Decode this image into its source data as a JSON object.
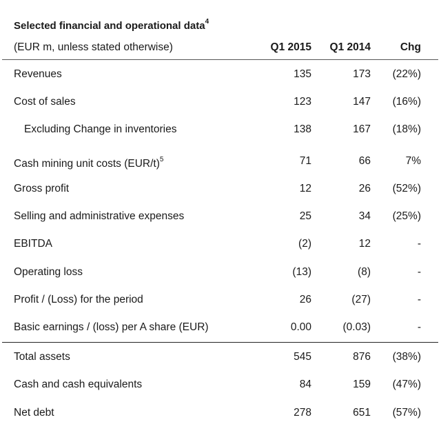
{
  "title": {
    "text": "Selected financial and operational data",
    "footnote": "4"
  },
  "header": {
    "unit_note": "(EUR m, unless stated otherwise)",
    "col_q1_2015": "Q1 2015",
    "col_q1_2014": "Q1 2014",
    "col_chg": "Chg"
  },
  "rows": [
    {
      "label": "Revenues",
      "q1_2015": "135",
      "q1_2014": "173",
      "chg": "(22%)"
    },
    {
      "label": "Cost of sales",
      "q1_2015": "123",
      "q1_2014": "147",
      "chg": "(16%)"
    },
    {
      "label": "Excluding Change in inventories",
      "q1_2015": "138",
      "q1_2014": "167",
      "chg": "(18%)"
    },
    {
      "label": "Cash mining unit costs (EUR/t)",
      "footnote": "5",
      "q1_2015": "71",
      "q1_2014": "66",
      "chg": "7%"
    },
    {
      "label": "Gross profit",
      "q1_2015": "12",
      "q1_2014": "26",
      "chg": "(52%)"
    },
    {
      "label": "Selling and administrative expenses",
      "q1_2015": "25",
      "q1_2014": "34",
      "chg": "(25%)"
    },
    {
      "label": "EBITDA",
      "q1_2015": "(2)",
      "q1_2014": "12",
      "chg": "-"
    },
    {
      "label": "Operating loss",
      "q1_2015": "(13)",
      "q1_2014": "(8)",
      "chg": "-"
    },
    {
      "label": "Profit / (Loss) for the period",
      "q1_2015": "26",
      "q1_2014": "(27)",
      "chg": "-"
    },
    {
      "label": "Basic earnings / (loss) per A share (EUR)",
      "q1_2015": "0.00",
      "q1_2014": "(0.03)",
      "chg": "-"
    },
    {
      "label": "Total assets",
      "q1_2015": "545",
      "q1_2014": "876",
      "chg": "(38%)"
    },
    {
      "label": "Cash and cash equivalents",
      "q1_2015": "84",
      "q1_2014": "159",
      "chg": "(47%)"
    },
    {
      "label": "Net debt",
      "q1_2015": "278",
      "q1_2014": "651",
      "chg": "(57%)"
    }
  ]
}
